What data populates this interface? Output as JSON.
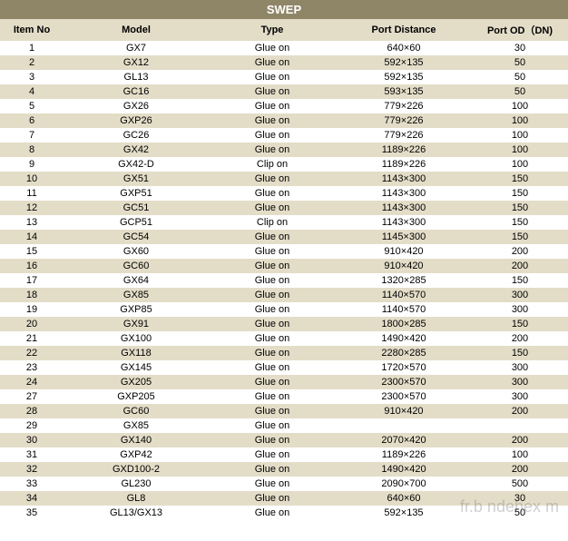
{
  "title": "SWEP",
  "colors": {
    "title_bg": "#8f8668",
    "title_fg": "#ffffff",
    "header_bg": "#e3ddc8",
    "even_row_bg": "#e3ddc8",
    "odd_row_bg": "#ffffff",
    "text": "#000000",
    "watermark": "rgba(120,120,120,0.35)"
  },
  "watermark": "fr.b  ndehex    m",
  "columns": [
    "Item No",
    "Model",
    "Type",
    "Port Distance",
    "Port OD（DN)"
  ],
  "rows": [
    {
      "item": "1",
      "model": "GX7",
      "type": "Glue on",
      "port": "640×60",
      "od": "30"
    },
    {
      "item": "2",
      "model": "GX12",
      "type": "Glue on",
      "port": "592×135",
      "od": "50"
    },
    {
      "item": "3",
      "model": "GL13",
      "type": "Glue on",
      "port": "592×135",
      "od": "50"
    },
    {
      "item": "4",
      "model": "GC16",
      "type": "Glue on",
      "port": "593×135",
      "od": "50"
    },
    {
      "item": "5",
      "model": "GX26",
      "type": "Glue on",
      "port": "779×226",
      "od": "100"
    },
    {
      "item": "6",
      "model": "GXP26",
      "type": "Glue on",
      "port": "779×226",
      "od": "100"
    },
    {
      "item": "7",
      "model": "GC26",
      "type": "Glue on",
      "port": "779×226",
      "od": "100"
    },
    {
      "item": "8",
      "model": "GX42",
      "type": "Glue on",
      "port": "1189×226",
      "od": "100"
    },
    {
      "item": "9",
      "model": "GX42-D",
      "type": "Clip on",
      "port": "1189×226",
      "od": "100"
    },
    {
      "item": "10",
      "model": "GX51",
      "type": "Glue on",
      "port": "1143×300",
      "od": "150"
    },
    {
      "item": "11",
      "model": "GXP51",
      "type": "Glue on",
      "port": "1143×300",
      "od": "150"
    },
    {
      "item": "12",
      "model": "GC51",
      "type": "Glue on",
      "port": "1143×300",
      "od": "150"
    },
    {
      "item": "13",
      "model": "GCP51",
      "type": "Clip on",
      "port": "1143×300",
      "od": "150"
    },
    {
      "item": "14",
      "model": "GC54",
      "type": "Glue on",
      "port": "1145×300",
      "od": "150"
    },
    {
      "item": "15",
      "model": "GX60",
      "type": "Glue on",
      "port": "910×420",
      "od": "200"
    },
    {
      "item": "16",
      "model": "GC60",
      "type": "Glue on",
      "port": "910×420",
      "od": "200"
    },
    {
      "item": "17",
      "model": "GX64",
      "type": "Glue on",
      "port": "1320×285",
      "od": "150"
    },
    {
      "item": "18",
      "model": "GX85",
      "type": "Glue on",
      "port": "1140×570",
      "od": "300"
    },
    {
      "item": "19",
      "model": "GXP85",
      "type": "Glue on",
      "port": "1140×570",
      "od": "300"
    },
    {
      "item": "20",
      "model": "GX91",
      "type": "Glue on",
      "port": "1800×285",
      "od": "150"
    },
    {
      "item": "21",
      "model": "GX100",
      "type": "Glue on",
      "port": "1490×420",
      "od": "200"
    },
    {
      "item": "22",
      "model": "GX118",
      "type": "Glue on",
      "port": "2280×285",
      "od": "150"
    },
    {
      "item": "23",
      "model": "GX145",
      "type": "Glue on",
      "port": "1720×570",
      "od": "300"
    },
    {
      "item": "24",
      "model": "GX205",
      "type": "Glue on",
      "port": "2300×570",
      "od": "300"
    },
    {
      "item": "27",
      "model": "GXP205",
      "type": "Glue on",
      "port": "2300×570",
      "od": "300"
    },
    {
      "item": "28",
      "model": "GC60",
      "type": "Glue on",
      "port": "910×420",
      "od": "200"
    },
    {
      "item": "29",
      "model": "GX85",
      "type": "Glue on",
      "port": "",
      "od": ""
    },
    {
      "item": "30",
      "model": "GX140",
      "type": "Glue on",
      "port": "2070×420",
      "od": "200"
    },
    {
      "item": "31",
      "model": "GXP42",
      "type": "Glue on",
      "port": "1189×226",
      "od": "100"
    },
    {
      "item": "32",
      "model": "GXD100-2",
      "type": "Glue on",
      "port": "1490×420",
      "od": "200"
    },
    {
      "item": "33",
      "model": "GL230",
      "type": "Glue on",
      "port": "2090×700",
      "od": "500"
    },
    {
      "item": "34",
      "model": "GL8",
      "type": "Glue on",
      "port": "640×60",
      "od": "30"
    },
    {
      "item": "35",
      "model": "GL13/GX13",
      "type": "Glue on",
      "port": "592×135",
      "od": "50"
    }
  ]
}
